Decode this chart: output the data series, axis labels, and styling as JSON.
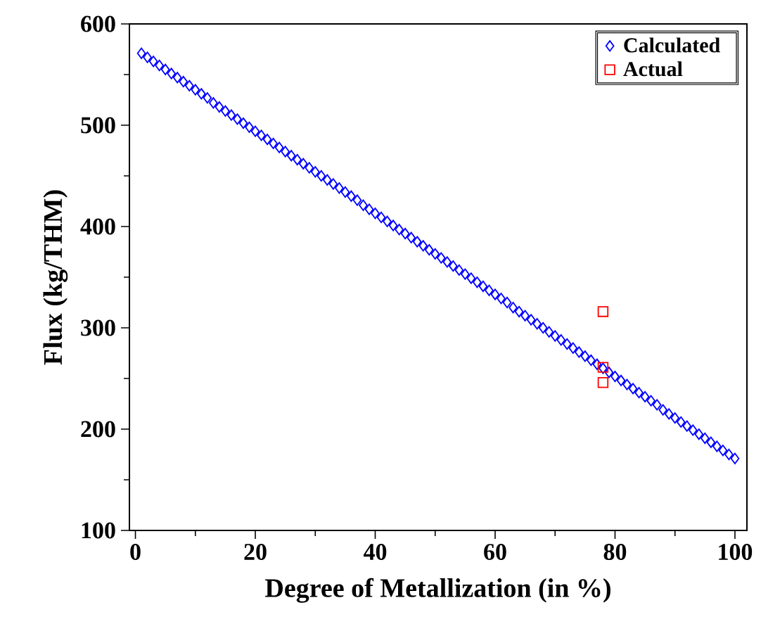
{
  "chart_data": {
    "type": "scatter",
    "xlabel": "Degree of Metallization (in %)",
    "ylabel": "Flux (kg/THM)",
    "xlim": [
      -1,
      102
    ],
    "ylim": [
      100,
      600
    ],
    "xticks": [
      0,
      20,
      40,
      60,
      80,
      100
    ],
    "yticks": [
      100,
      200,
      300,
      400,
      500,
      600
    ],
    "legend": "top right",
    "grid": false,
    "series": [
      {
        "name": "Calculated",
        "color": "#0000ff",
        "marker": "diamond",
        "x": [
          1,
          2,
          3,
          4,
          5,
          6,
          7,
          8,
          9,
          10,
          11,
          12,
          13,
          14,
          15,
          16,
          17,
          18,
          19,
          20,
          21,
          22,
          23,
          24,
          25,
          26,
          27,
          28,
          29,
          30,
          31,
          32,
          33,
          34,
          35,
          36,
          37,
          38,
          39,
          40,
          41,
          42,
          43,
          44,
          45,
          46,
          47,
          48,
          49,
          50,
          51,
          52,
          53,
          54,
          55,
          56,
          57,
          58,
          59,
          60,
          61,
          62,
          63,
          64,
          65,
          66,
          67,
          68,
          69,
          70,
          71,
          72,
          73,
          74,
          75,
          76,
          77,
          78,
          79,
          80,
          81,
          82,
          83,
          84,
          85,
          86,
          87,
          88,
          89,
          90,
          91,
          92,
          93,
          94,
          95,
          96,
          97,
          98,
          99,
          100
        ],
        "values": [
          571,
          567,
          563,
          559,
          555,
          551,
          547,
          543,
          539,
          535,
          531,
          527,
          522,
          518,
          514,
          510,
          506,
          502,
          498,
          494,
          490,
          486,
          482,
          478,
          474,
          470,
          466,
          462,
          458,
          454,
          450,
          446,
          442,
          438,
          434,
          430,
          426,
          421,
          417,
          413,
          409,
          405,
          401,
          397,
          393,
          389,
          385,
          381,
          377,
          373,
          369,
          365,
          361,
          357,
          353,
          349,
          345,
          341,
          337,
          333,
          329,
          325,
          320,
          316,
          312,
          308,
          304,
          300,
          296,
          292,
          288,
          284,
          280,
          276,
          272,
          268,
          264,
          260,
          256,
          252,
          248,
          244,
          240,
          236,
          232,
          228,
          224,
          219,
          215,
          211,
          207,
          203,
          199,
          195,
          191,
          187,
          183,
          179,
          175,
          171
        ]
      },
      {
        "name": "Actual",
        "color": "#ff0000",
        "marker": "square",
        "x": [
          78,
          78,
          78
        ],
        "values": [
          316,
          261,
          246
        ]
      }
    ]
  }
}
